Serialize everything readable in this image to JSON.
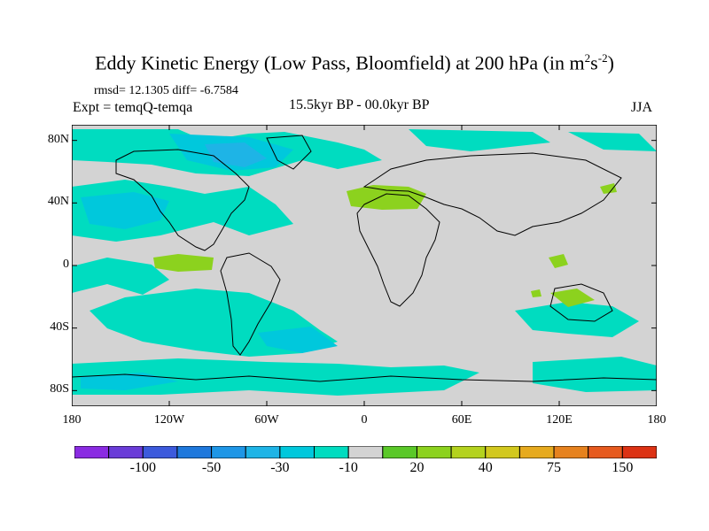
{
  "title": {
    "main": "Eddy Kinetic Energy (Low Pass, Bloomfield) at 200 hPa (in m",
    "sup1": "2",
    "mid": "s",
    "sup2": "-2",
    "end": ")"
  },
  "stats": "rmsd= 12.1305 diff= -6.7584",
  "expt": "Expt = temqQ-temqa",
  "period": "15.5kyr BP - 00.0kyr BP",
  "season": "JJA",
  "map": {
    "projection": "cylindrical-equidistant",
    "lon_range": [
      -180,
      180
    ],
    "lat_range": [
      -90,
      90
    ],
    "ocean_land_background": "#d3d3d3",
    "y_ticks": [
      {
        "lat": 80,
        "label": "80N"
      },
      {
        "lat": 40,
        "label": "40N"
      },
      {
        "lat": 0,
        "label": "0"
      },
      {
        "lat": -40,
        "label": "40S"
      },
      {
        "lat": -80,
        "label": "80S"
      }
    ],
    "x_ticks": [
      {
        "lon": -180,
        "label": "180"
      },
      {
        "lon": -120,
        "label": "120W"
      },
      {
        "lon": -60,
        "label": "60W"
      },
      {
        "lon": 0,
        "label": "0"
      },
      {
        "lon": 60,
        "label": "60E"
      },
      {
        "lon": 120,
        "label": "120E"
      },
      {
        "lon": 180,
        "label": "180"
      }
    ]
  },
  "colorbar": {
    "colors": [
      "#8a2be2",
      "#6a3cd8",
      "#3c5adc",
      "#1e78dc",
      "#1e96e6",
      "#1eb4e6",
      "#00c8dc",
      "#00dcc0",
      "#d3d3d3",
      "#5ac828",
      "#8cd21e",
      "#b4d21e",
      "#d2c81e",
      "#e6aa1e",
      "#e6821e",
      "#e65a1e",
      "#dc3214"
    ],
    "labels": [
      {
        "after_box": 2,
        "text": "-100"
      },
      {
        "after_box": 4,
        "text": "-50"
      },
      {
        "after_box": 6,
        "text": "-30"
      },
      {
        "after_box": 8,
        "text": "-10"
      },
      {
        "after_box": 10,
        "text": "20"
      },
      {
        "after_box": 12,
        "text": "40"
      },
      {
        "after_box": 14,
        "text": "75"
      },
      {
        "after_box": 16,
        "text": "150"
      }
    ]
  }
}
